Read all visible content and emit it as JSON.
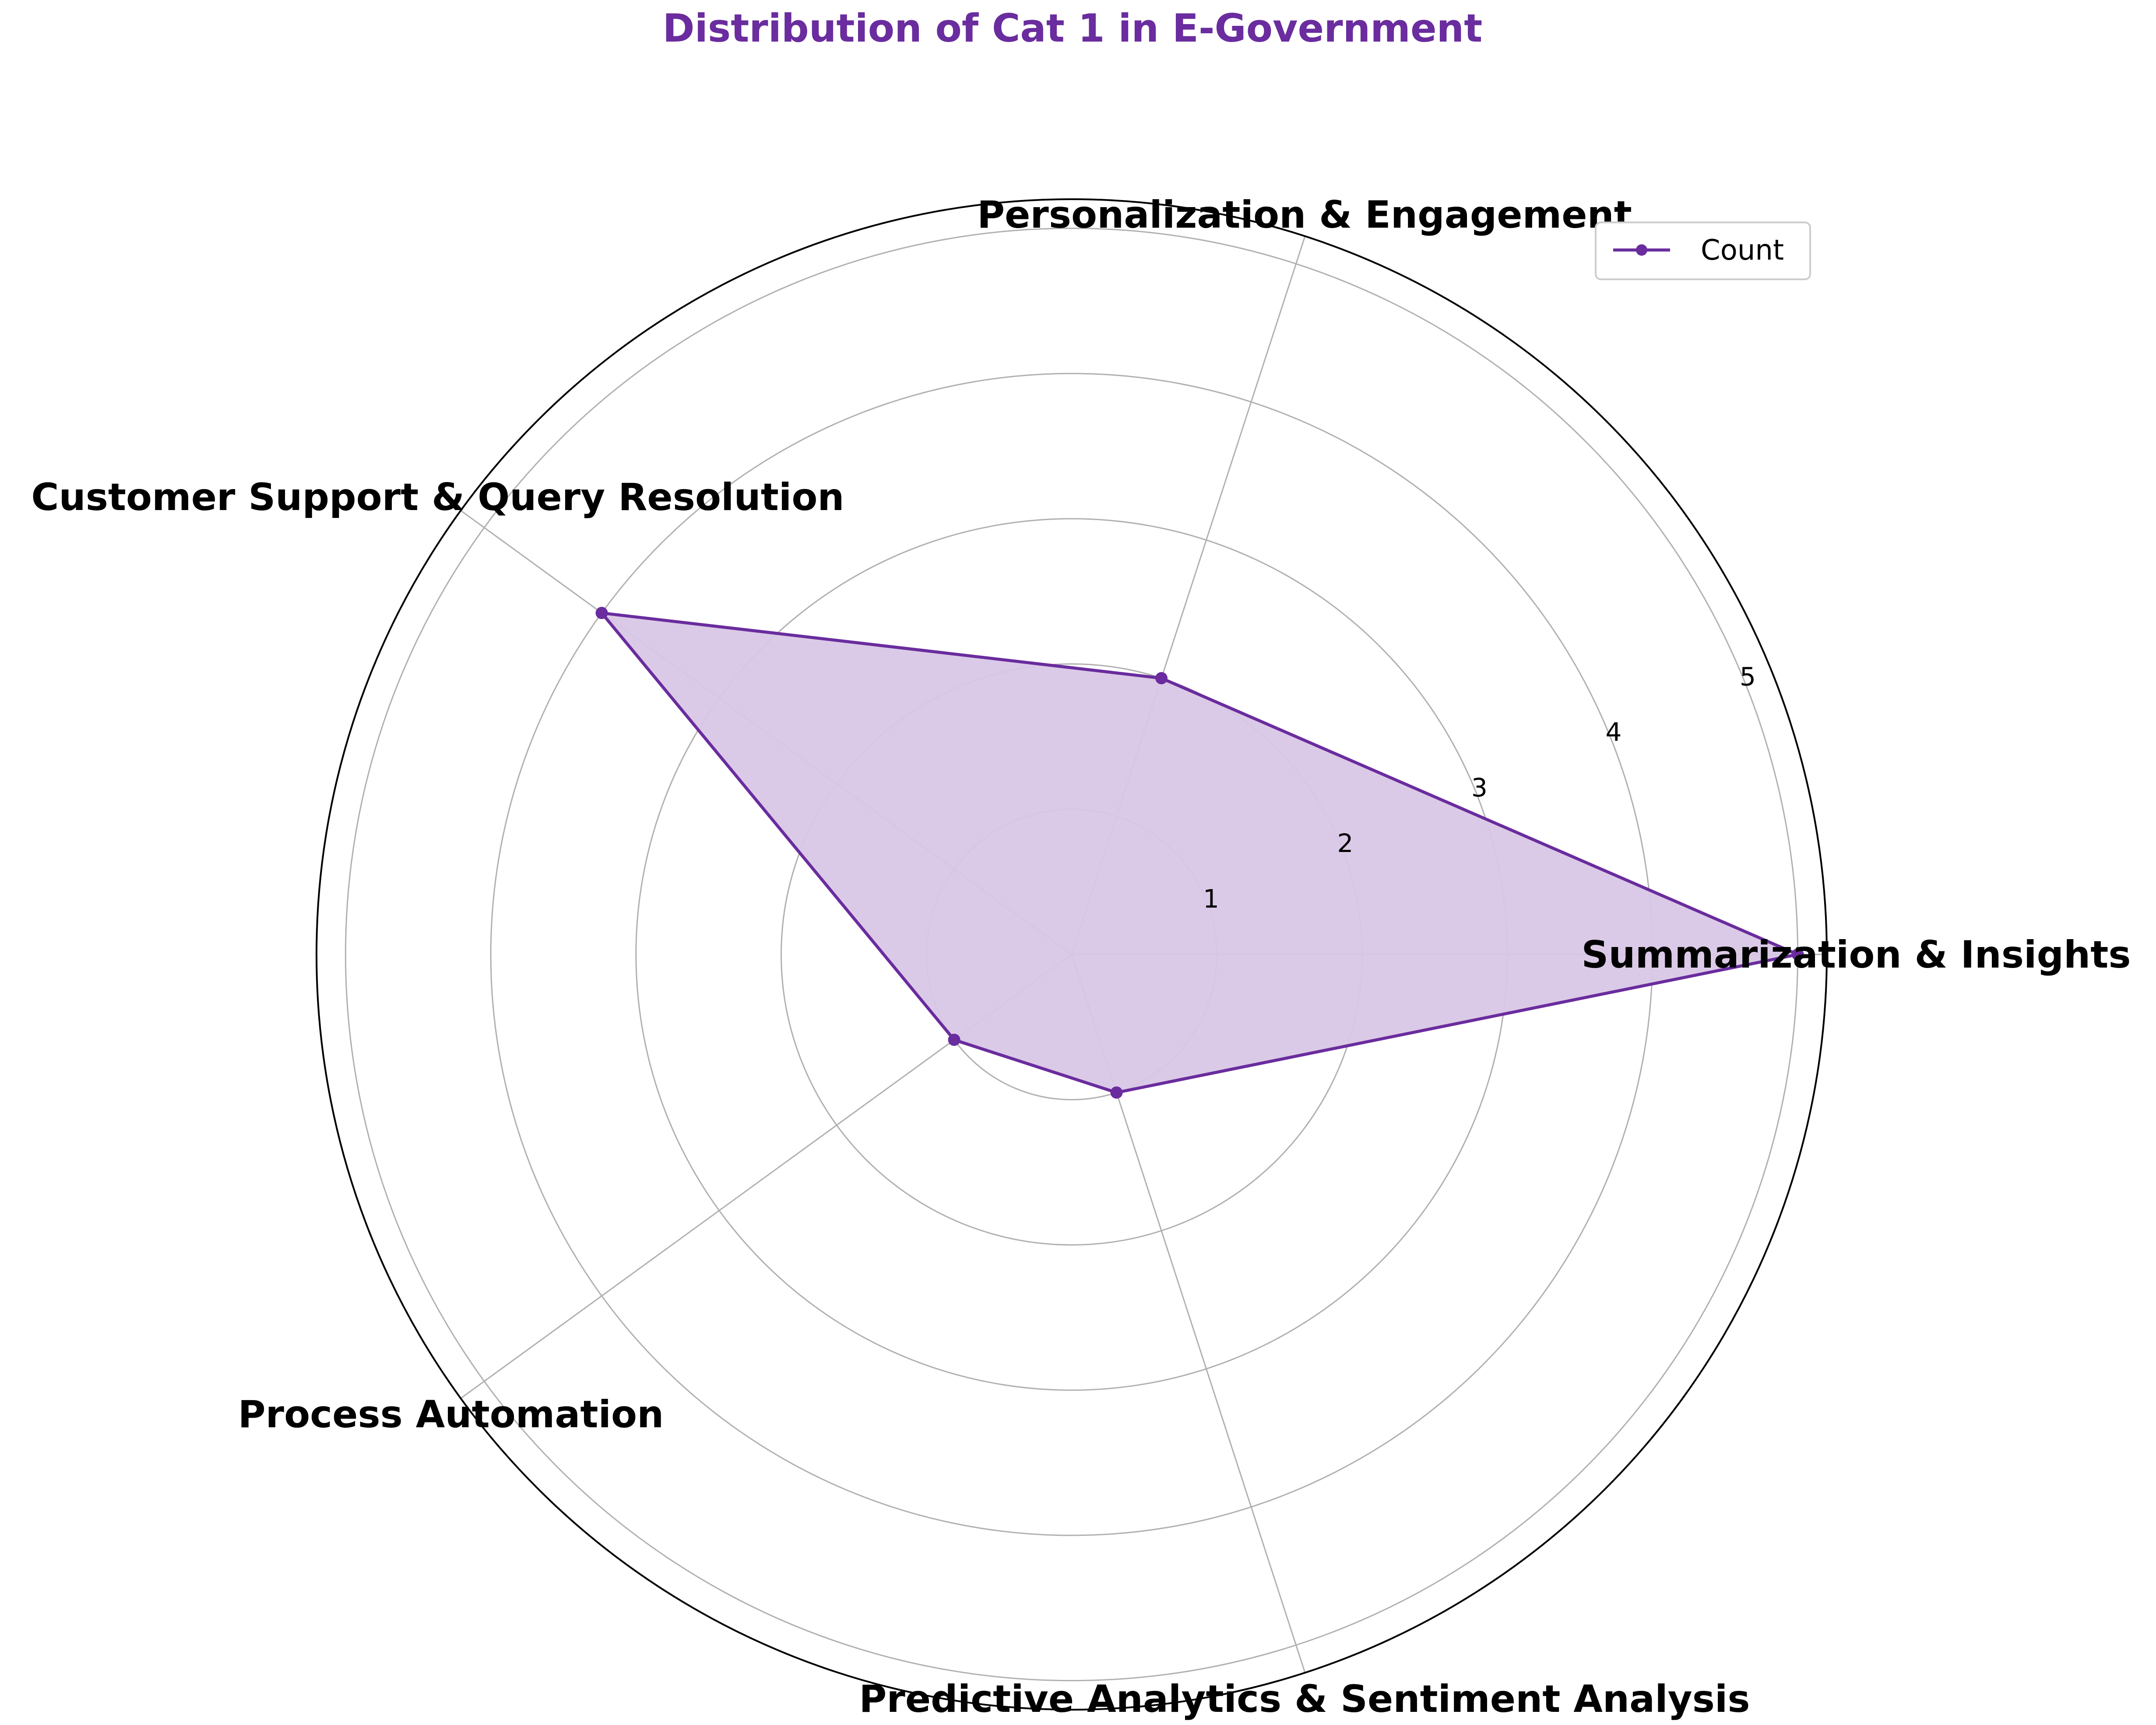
{
  "chart_data": {
    "type": "radar",
    "title": "Distribution of Cat 1 in E-Government",
    "categories": [
      "Summarization & Insights",
      "Personalization & Engagement",
      "Customer Support & Query Resolution",
      "Process Automation",
      "Predictive Analytics & Sentiment Analysis"
    ],
    "series": [
      {
        "name": "Count",
        "values": [
          5,
          2,
          4,
          1,
          1
        ]
      }
    ],
    "rlim": [
      0,
      5.2
    ],
    "rticks": [
      1,
      2,
      3,
      4,
      5
    ],
    "grid": true,
    "legend_position": "top-right",
    "colors": {
      "series_line": "#6a2c9e",
      "series_fill": "#d9c7e6",
      "title": "#6a2c9e",
      "grid": "#b0b0b0",
      "frame": "#000000"
    }
  }
}
